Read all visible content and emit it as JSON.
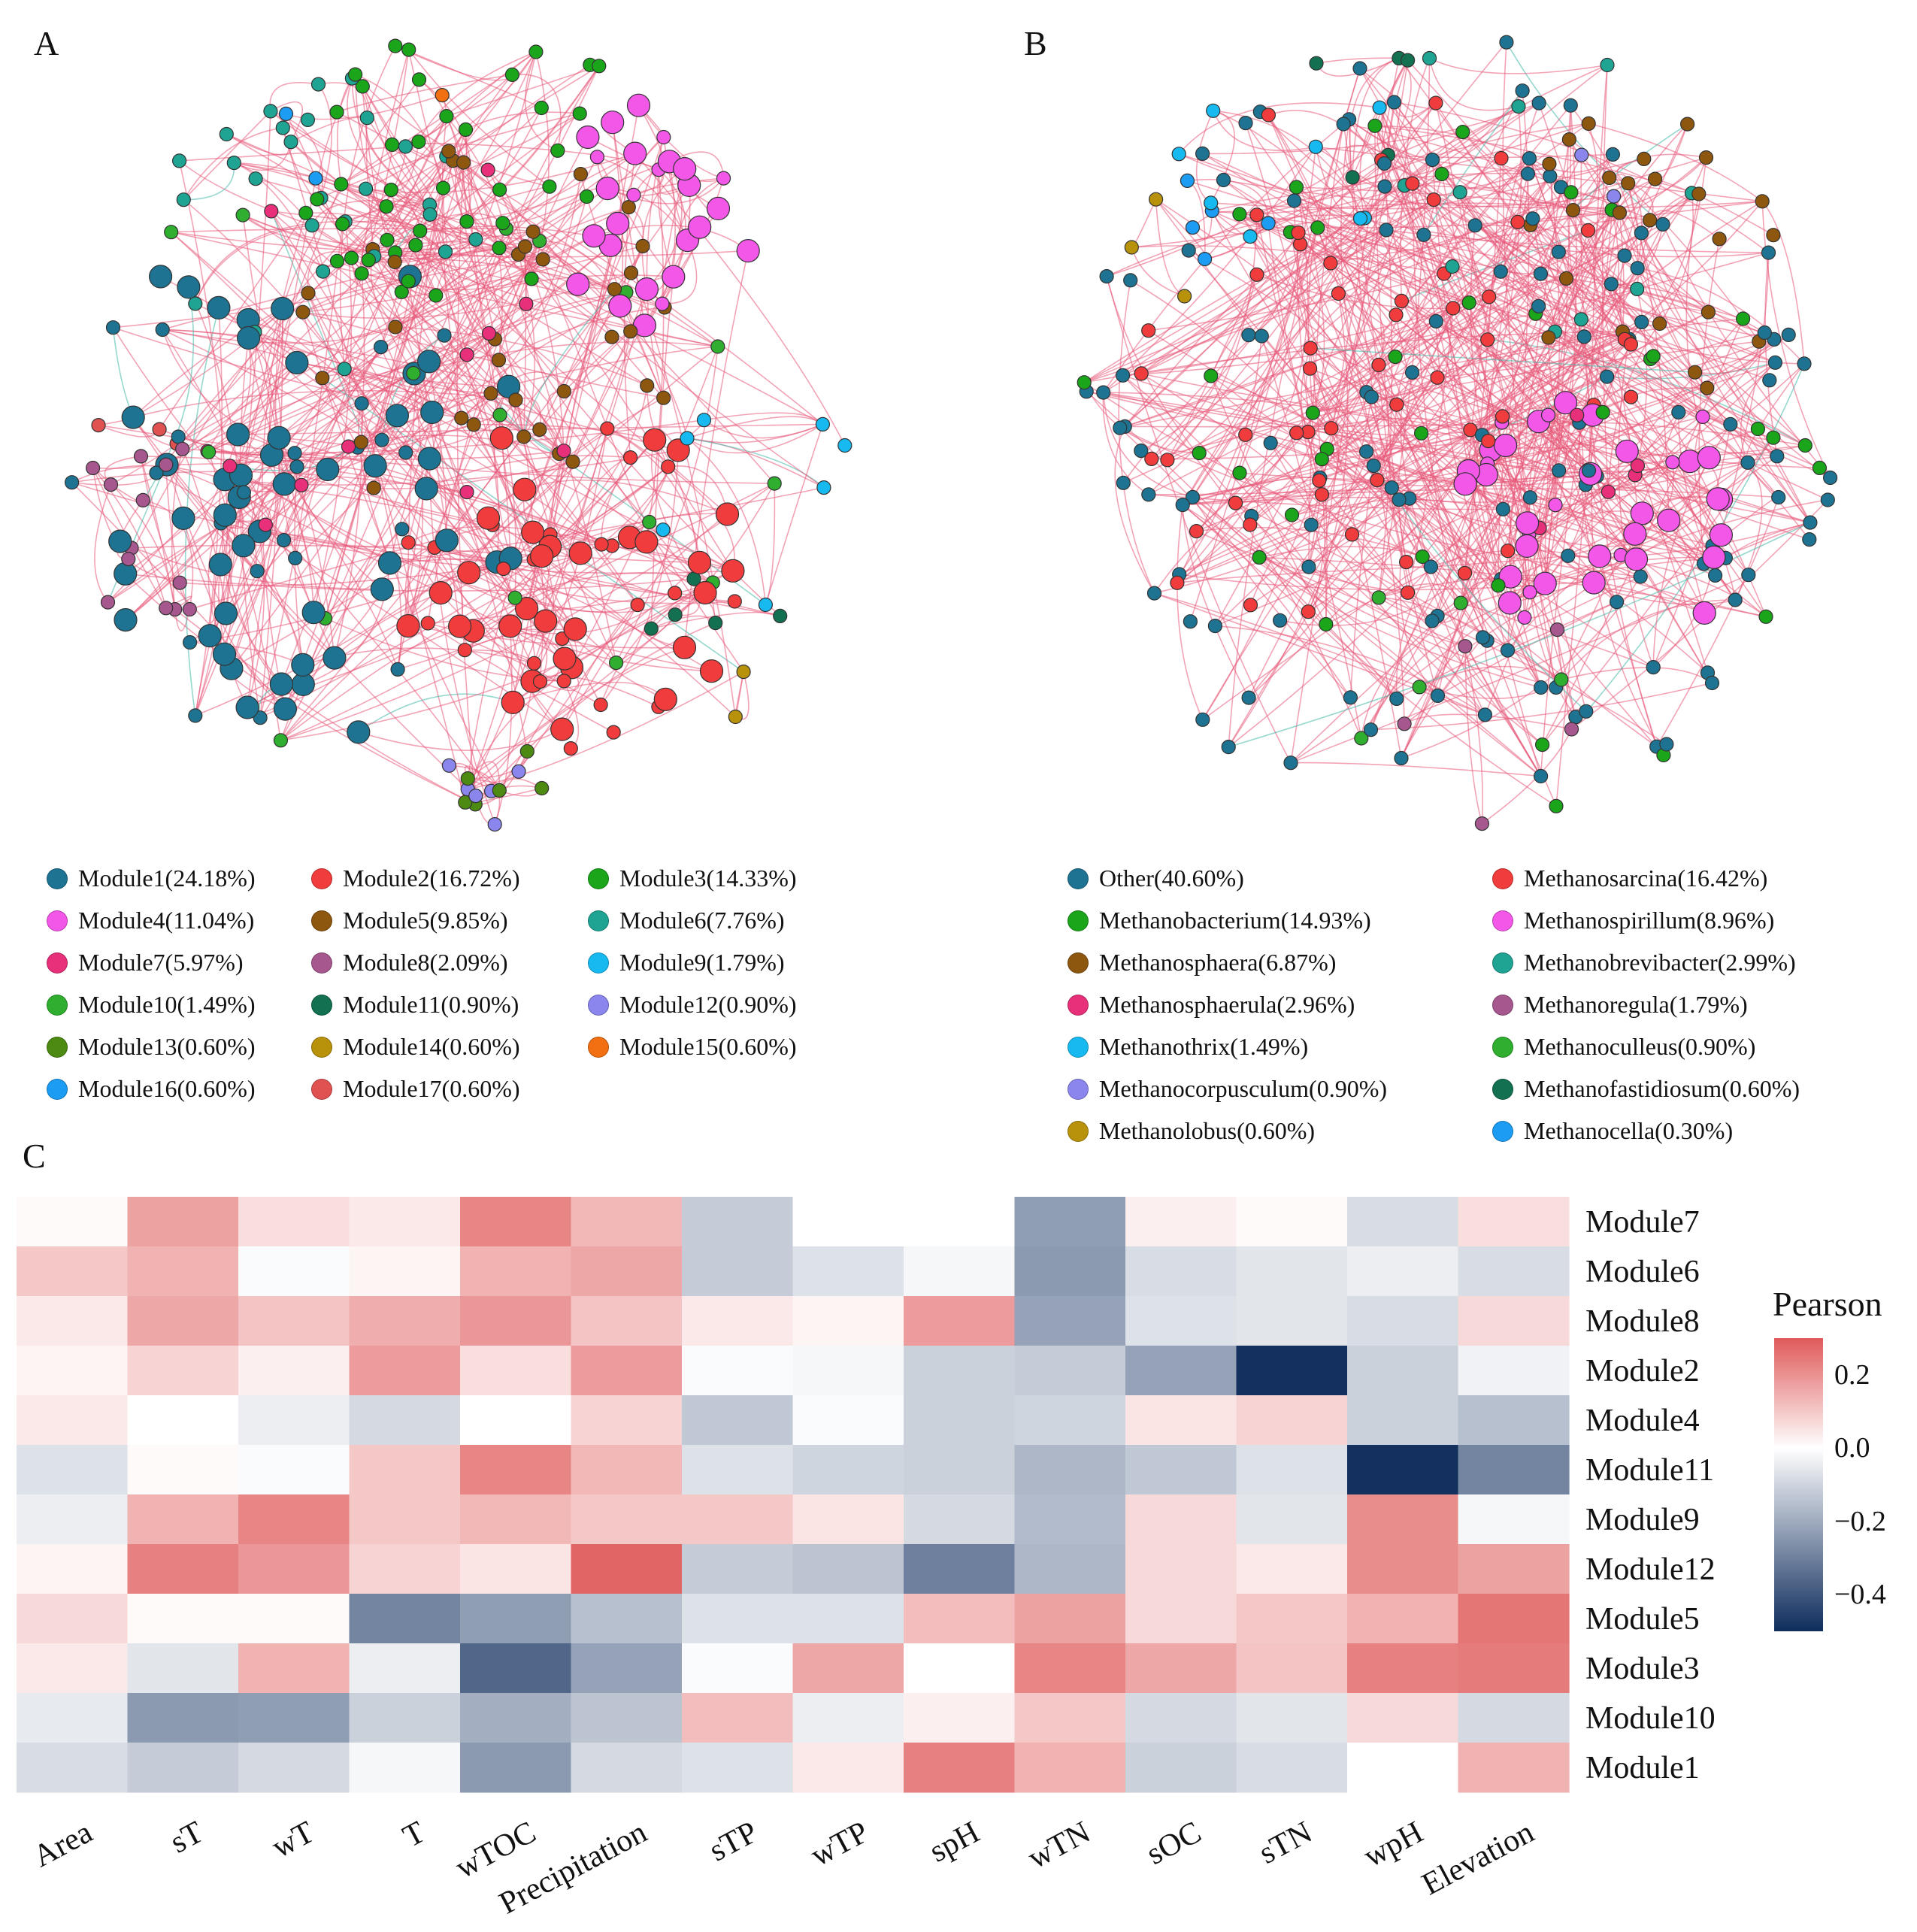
{
  "panels": {
    "a": "A",
    "b": "B",
    "c": "C"
  },
  "palette": {
    "edge_positive": "#e8597a",
    "edge_negative": "#3fb8a8",
    "heat_high": "#e05a5a",
    "heat_mid": "#ffffff",
    "heat_low": "#0e2c5c"
  },
  "legend_a": [
    {
      "label": "Module1(24.18%)",
      "color": "#1e7392"
    },
    {
      "label": "Module2(16.72%)",
      "color": "#f03c3c"
    },
    {
      "label": "Module3(14.33%)",
      "color": "#1aa51a"
    },
    {
      "label": "Module4(11.04%)",
      "color": "#f257e8"
    },
    {
      "label": "Module5(9.85%)",
      "color": "#8e5710"
    },
    {
      "label": "Module6(7.76%)",
      "color": "#1fa393"
    },
    {
      "label": "Module7(5.97%)",
      "color": "#e8307a"
    },
    {
      "label": "Module8(2.09%)",
      "color": "#a6578e"
    },
    {
      "label": "Module9(1.79%)",
      "color": "#17baf0"
    },
    {
      "label": "Module10(1.49%)",
      "color": "#2fae2f"
    },
    {
      "label": "Module11(0.90%)",
      "color": "#137152"
    },
    {
      "label": "Module12(0.90%)",
      "color": "#8a86ee"
    },
    {
      "label": "Module13(0.60%)",
      "color": "#4d8a12"
    },
    {
      "label": "Module14(0.60%)",
      "color": "#b8920b"
    },
    {
      "label": "Module15(0.60%)",
      "color": "#f27011"
    },
    {
      "label": "Module16(0.60%)",
      "color": "#1c9cf2"
    },
    {
      "label": "Module17(0.60%)",
      "color": "#e05252"
    }
  ],
  "legend_b": [
    {
      "label": "Other(40.60%)",
      "color": "#1e7392"
    },
    {
      "label": "Methanosarcina(16.42%)",
      "color": "#f03c3c"
    },
    {
      "label": "Methanobacterium(14.93%)",
      "color": "#1aa51a"
    },
    {
      "label": "Methanospirillum(8.96%)",
      "color": "#f257e8"
    },
    {
      "label": "Methanosphaera(6.87%)",
      "color": "#8e5710"
    },
    {
      "label": "Methanobrevibacter(2.99%)",
      "color": "#1fa393"
    },
    {
      "label": "Methanosphaerula(2.96%)",
      "color": "#e8307a"
    },
    {
      "label": "Methanoregula(1.79%)",
      "color": "#a6578e"
    },
    {
      "label": "Methanothrix(1.49%)",
      "color": "#17baf0"
    },
    {
      "label": "Methanoculleus(0.90%)",
      "color": "#2fae2f"
    },
    {
      "label": "Methanocorpusculum(0.90%)",
      "color": "#8a86ee"
    },
    {
      "label": "Methanofastidiosum(0.60%)",
      "color": "#137152"
    },
    {
      "label": "Methanolobus(0.60%)",
      "color": "#b8920b"
    },
    {
      "label": "Methanocella(0.30%)",
      "color": "#1c9cf2"
    }
  ],
  "chart_data": {
    "type": "heatmap",
    "title": "",
    "legend_title": "Pearson",
    "colorbar_ticks": [
      "0.2",
      "0.0",
      "−0.2",
      "−0.4"
    ],
    "colorbar_tick_values": [
      0.2,
      0.0,
      -0.2,
      -0.4
    ],
    "value_range": [
      -0.5,
      0.3
    ],
    "columns": [
      "Area",
      "sT",
      "wT",
      "T",
      "wTOC",
      "Precipitation",
      "sTP",
      "wTP",
      "spH",
      "wTN",
      "sOC",
      "sTN",
      "wpH",
      "Elevation"
    ],
    "rows": [
      "Module7",
      "Module6",
      "Module8",
      "Module2",
      "Module4",
      "Module11",
      "Module9",
      "Module12",
      "Module5",
      "Module3",
      "Module10",
      "Module1"
    ],
    "values": [
      [
        0.01,
        0.17,
        0.06,
        0.04,
        0.22,
        0.13,
        -0.12,
        0.0,
        0.0,
        -0.23,
        0.03,
        0.01,
        -0.08,
        0.06
      ],
      [
        0.1,
        0.14,
        -0.01,
        0.02,
        0.14,
        0.16,
        -0.12,
        -0.07,
        -0.02,
        -0.24,
        -0.08,
        -0.06,
        -0.04,
        -0.08
      ],
      [
        0.04,
        0.16,
        0.11,
        0.15,
        0.19,
        0.11,
        0.04,
        0.02,
        0.18,
        -0.22,
        -0.07,
        -0.06,
        -0.08,
        0.07
      ],
      [
        0.02,
        0.08,
        0.03,
        0.18,
        0.06,
        0.18,
        -0.01,
        -0.02,
        -0.11,
        -0.12,
        -0.22,
        -0.49,
        -0.11,
        -0.03
      ],
      [
        0.04,
        0.0,
        -0.04,
        -0.09,
        0.0,
        0.08,
        -0.13,
        -0.01,
        -0.11,
        -0.1,
        0.05,
        0.08,
        -0.11,
        -0.15
      ],
      [
        -0.07,
        0.01,
        -0.01,
        0.1,
        0.22,
        0.13,
        -0.07,
        -0.1,
        -0.11,
        -0.17,
        -0.13,
        -0.07,
        -0.49,
        -0.29
      ],
      [
        -0.04,
        0.14,
        0.22,
        0.1,
        0.13,
        0.1,
        0.1,
        0.05,
        -0.09,
        -0.16,
        0.07,
        -0.06,
        0.21,
        -0.02
      ],
      [
        0.02,
        0.23,
        0.19,
        0.08,
        0.05,
        0.28,
        -0.12,
        -0.14,
        -0.3,
        -0.17,
        0.07,
        0.04,
        0.21,
        0.17
      ],
      [
        0.07,
        0.01,
        0.01,
        -0.29,
        -0.23,
        -0.15,
        -0.07,
        -0.07,
        0.12,
        0.17,
        0.07,
        0.1,
        0.14,
        0.25
      ],
      [
        0.04,
        -0.06,
        0.14,
        -0.04,
        -0.36,
        -0.22,
        -0.01,
        0.16,
        0.0,
        0.22,
        0.16,
        0.11,
        0.23,
        0.24
      ],
      [
        -0.05,
        -0.24,
        -0.23,
        -0.11,
        -0.19,
        -0.14,
        0.12,
        -0.04,
        0.03,
        0.1,
        -0.09,
        -0.06,
        0.07,
        -0.09
      ],
      [
        -0.08,
        -0.12,
        -0.09,
        -0.02,
        -0.24,
        -0.09,
        -0.07,
        0.04,
        0.23,
        0.14,
        -0.11,
        -0.08,
        0.0,
        0.14
      ]
    ]
  }
}
